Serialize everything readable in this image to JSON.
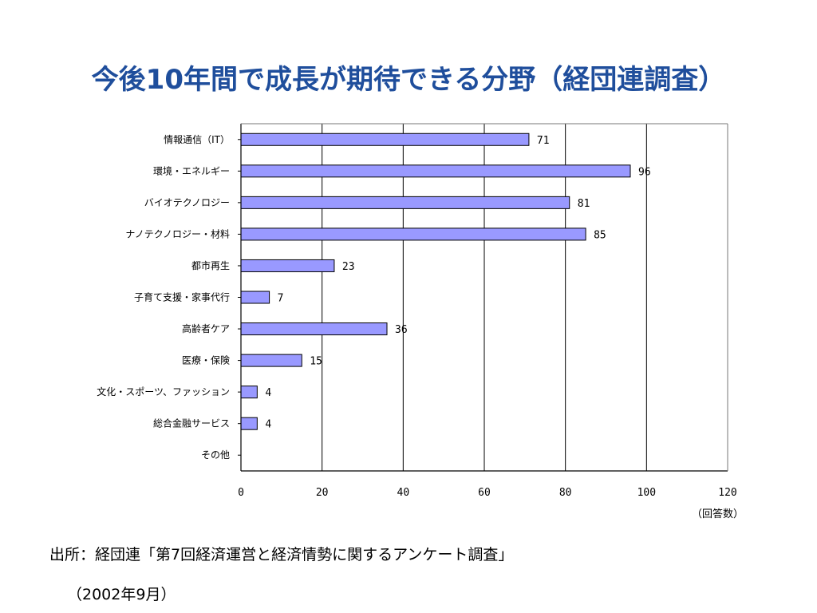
{
  "slide": {
    "title": "今後10年間で成長が期待できる分野（経団連調査）",
    "source": "出所：経団連「第7回経済運営と経済情勢に関するアンケート調査」",
    "date": "（2002年9月）"
  },
  "colors": {
    "title": "#1f4e9c",
    "bar_fill": "#9999ff",
    "bar_stroke": "#000000",
    "gridline": "#000000"
  },
  "chart_data": {
    "type": "bar",
    "orientation": "horizontal",
    "title": "",
    "xlabel": "（回答数）",
    "ylabel": "",
    "xlim": [
      0,
      120
    ],
    "xticks": [
      0,
      20,
      40,
      60,
      80,
      100,
      120
    ],
    "grid": true,
    "legend": "none",
    "categories": [
      "情報通信（IT）",
      "環境・エネルギー",
      "バイオテクノロジー",
      "ナノテクノロジー・材料",
      "都市再生",
      "子育て支援・家事代行",
      "高齢者ケア",
      "医療・保険",
      "文化・スポーツ、ファッション",
      "総合金融サービス",
      "その他"
    ],
    "values": [
      71,
      96,
      81,
      85,
      23,
      7,
      36,
      15,
      4,
      4,
      0
    ],
    "value_labels": [
      "71",
      "96",
      "81",
      "85",
      "23",
      "7",
      "36",
      "15",
      "4",
      "4",
      ""
    ]
  }
}
